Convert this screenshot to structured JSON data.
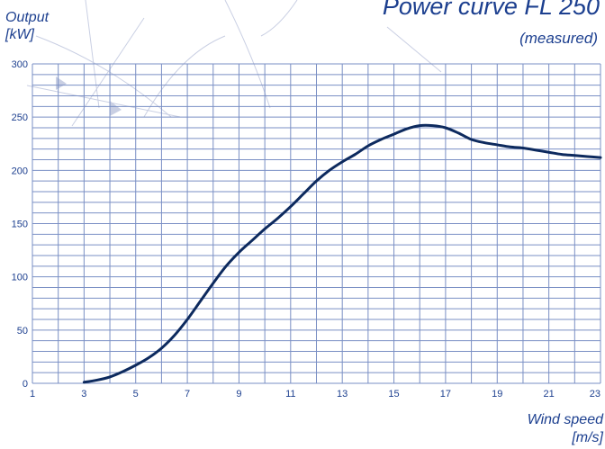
{
  "title": "Power curve FL 250",
  "subtitle": "(measured)",
  "ylabel_line1": "Output",
  "ylabel_line2": "[kW]",
  "xlabel_line1": "Wind speed",
  "xlabel_line2": "[m/s]",
  "colors": {
    "curve": "#0d2a5e",
    "grid": "#7a8fc4",
    "text": "#1c3f8f",
    "watermark": "#c9cfe3"
  },
  "chart_data": {
    "type": "line",
    "title": "Power curve FL 250",
    "subtitle": "(measured)",
    "xlabel": "Wind speed [m/s]",
    "ylabel": "Output [kW]",
    "xlim": [
      1,
      23
    ],
    "ylim": [
      0,
      300
    ],
    "x_ticks": [
      1,
      3,
      5,
      7,
      9,
      11,
      13,
      15,
      17,
      19,
      21,
      23
    ],
    "y_ticks": [
      0,
      50,
      100,
      150,
      200,
      250,
      300
    ],
    "grid": true,
    "series": [
      {
        "x": [
          3,
          3.5,
          4,
          4.5,
          5,
          5.5,
          6,
          6.5,
          7,
          7.5,
          8,
          8.5,
          9,
          9.5,
          10,
          10.5,
          11,
          11.5,
          12,
          12.5,
          13,
          13.5,
          14,
          14.5,
          15,
          15.5,
          16,
          16.5,
          17,
          17.5,
          18,
          18.5,
          19,
          19.5,
          20,
          20.5,
          21,
          21.5,
          22,
          22.5,
          23
        ],
        "y": [
          1,
          3,
          6,
          11,
          17,
          24,
          33,
          45,
          60,
          77,
          94,
          110,
          123,
          134,
          145,
          155,
          166,
          178,
          190,
          200,
          208,
          215,
          223,
          229,
          234,
          239,
          242,
          242,
          240,
          235,
          229,
          226,
          224,
          222,
          221,
          219,
          217,
          215,
          214,
          213,
          212
        ]
      }
    ]
  }
}
